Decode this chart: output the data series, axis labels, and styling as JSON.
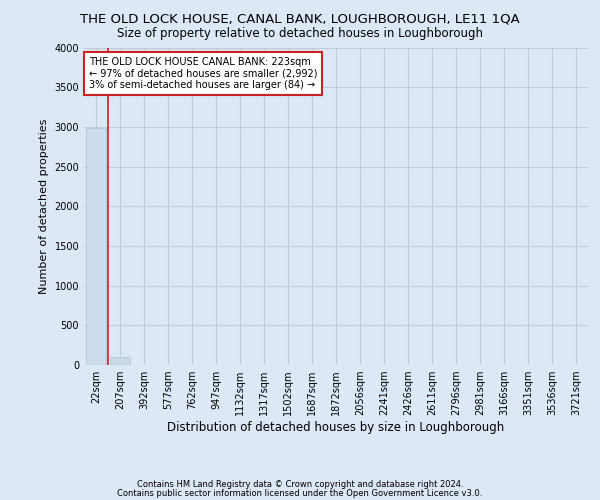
{
  "title": "THE OLD LOCK HOUSE, CANAL BANK, LOUGHBOROUGH, LE11 1QA",
  "subtitle": "Size of property relative to detached houses in Loughborough",
  "xlabel": "Distribution of detached houses by size in Loughborough",
  "ylabel": "Number of detached properties",
  "footnote1": "Contains HM Land Registry data © Crown copyright and database right 2024.",
  "footnote2": "Contains public sector information licensed under the Open Government Licence v3.0.",
  "annotation_line1": "THE OLD LOCK HOUSE CANAL BANK: 223sqm",
  "annotation_line2": "← 97% of detached houses are smaller (2,992)",
  "annotation_line3": "3% of semi-detached houses are larger (84) →",
  "bar_color": "#ccdcec",
  "subject_bar_color": "#c0d4e8",
  "subject_line_color": "#cc2222",
  "annotation_box_edge_color": "#cc2222",
  "background_color": "#dce8f5",
  "categories": [
    "22sqm",
    "207sqm",
    "392sqm",
    "577sqm",
    "762sqm",
    "947sqm",
    "1132sqm",
    "1317sqm",
    "1502sqm",
    "1687sqm",
    "1872sqm",
    "2056sqm",
    "2241sqm",
    "2426sqm",
    "2611sqm",
    "2796sqm",
    "2981sqm",
    "3166sqm",
    "3351sqm",
    "3536sqm",
    "3721sqm"
  ],
  "values": [
    2990,
    100,
    5,
    2,
    1,
    1,
    0,
    0,
    0,
    0,
    0,
    0,
    0,
    0,
    0,
    0,
    0,
    0,
    0,
    0,
    0
  ],
  "subject_bar_index": 1,
  "red_line_x": 0.5,
  "ylim": [
    0,
    4000
  ],
  "yticks": [
    0,
    500,
    1000,
    1500,
    2000,
    2500,
    3000,
    3500,
    4000
  ],
  "grid_color": "#c0ccd8",
  "title_fontsize": 9.5,
  "subtitle_fontsize": 8.5,
  "ylabel_fontsize": 8,
  "xlabel_fontsize": 8.5,
  "tick_fontsize": 7,
  "footnote_fontsize": 6,
  "annotation_fontsize": 7
}
